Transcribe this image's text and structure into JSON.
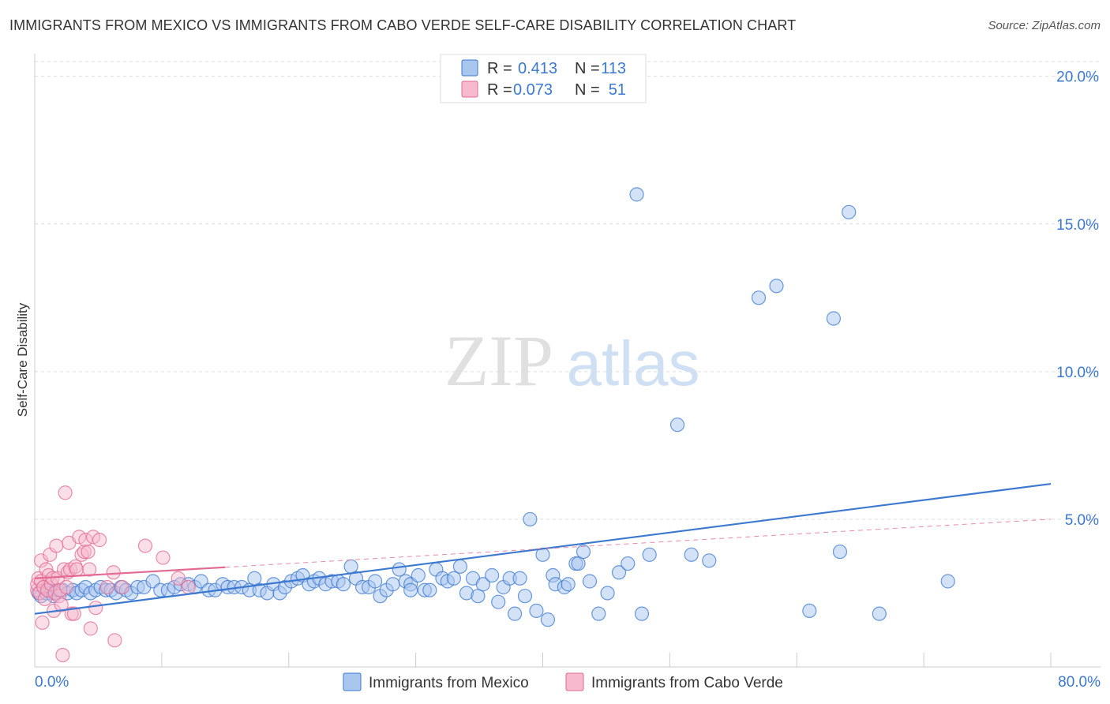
{
  "title": "IMMIGRANTS FROM MEXICO VS IMMIGRANTS FROM CABO VERDE SELF-CARE DISABILITY CORRELATION CHART",
  "source": "Source: ZipAtlas.com",
  "watermark": {
    "zip": "ZIP",
    "atlas": "atlas"
  },
  "colors": {
    "mexico": "#3b78d0",
    "mexico_fill": "#a9c6ef",
    "cabo": "#e36a93",
    "cabo_fill": "#f6b9cd",
    "grid": "#dddddd"
  },
  "stats_box": {
    "rows": [
      {
        "r_label": "R = ",
        "r_value": "0.413",
        "n_label": "N = ",
        "n_value": "113"
      },
      {
        "r_label": "R = ",
        "r_value": "0.073",
        "n_label": "N = ",
        "n_value": "51"
      }
    ]
  },
  "chart_data": {
    "type": "scatter",
    "title": "IMMIGRANTS FROM MEXICO VS IMMIGRANTS FROM CABO VERDE SELF-CARE DISABILITY CORRELATION CHART",
    "xlabel": "",
    "ylabel": "Self-Care Disability",
    "xlim": [
      0,
      80
    ],
    "ylim": [
      0,
      20.5
    ],
    "x_tick_labels": [
      "0.0%",
      "80.0%"
    ],
    "y_ticks": [
      5,
      10,
      15,
      20
    ],
    "y_tick_labels": [
      "5.0%",
      "10.0%",
      "15.0%",
      "20.0%"
    ],
    "legend": [
      "Immigrants from Mexico",
      "Immigrants from Cabo Verde"
    ],
    "series": [
      {
        "name": "Immigrants from Mexico",
        "r": 0.413,
        "n": 113,
        "trend": {
          "x0": 0,
          "y0": 1.8,
          "x1": 80,
          "y1": 6.2
        },
        "points": [
          [
            0.3,
            2.5
          ],
          [
            0.5,
            2.4
          ],
          [
            0.7,
            2.7
          ],
          [
            0.9,
            2.5
          ],
          [
            1.1,
            2.6
          ],
          [
            1.3,
            2.5
          ],
          [
            1.5,
            2.4
          ],
          [
            1.8,
            2.6
          ],
          [
            2.2,
            2.6
          ],
          [
            2.6,
            2.5
          ],
          [
            3.0,
            2.6
          ],
          [
            3.3,
            2.5
          ],
          [
            3.7,
            2.6
          ],
          [
            4.0,
            2.7
          ],
          [
            4.4,
            2.5
          ],
          [
            4.8,
            2.6
          ],
          [
            5.2,
            2.7
          ],
          [
            5.6,
            2.6
          ],
          [
            6.0,
            2.6
          ],
          [
            6.4,
            2.5
          ],
          [
            6.8,
            2.7
          ],
          [
            7.2,
            2.6
          ],
          [
            7.6,
            2.5
          ],
          [
            8.1,
            2.7
          ],
          [
            8.6,
            2.7
          ],
          [
            9.3,
            2.9
          ],
          [
            9.9,
            2.6
          ],
          [
            10.5,
            2.6
          ],
          [
            11.0,
            2.7
          ],
          [
            11.5,
            2.8
          ],
          [
            12.1,
            2.8
          ],
          [
            12.6,
            2.7
          ],
          [
            13.1,
            2.9
          ],
          [
            13.7,
            2.6
          ],
          [
            14.2,
            2.6
          ],
          [
            14.8,
            2.8
          ],
          [
            15.2,
            2.7
          ],
          [
            15.7,
            2.7
          ],
          [
            16.3,
            2.7
          ],
          [
            16.9,
            2.6
          ],
          [
            17.3,
            3.0
          ],
          [
            17.7,
            2.6
          ],
          [
            18.3,
            2.5
          ],
          [
            18.8,
            2.8
          ],
          [
            19.3,
            2.5
          ],
          [
            19.7,
            2.7
          ],
          [
            20.2,
            2.9
          ],
          [
            20.7,
            3.0
          ],
          [
            21.1,
            3.1
          ],
          [
            21.6,
            2.8
          ],
          [
            22.0,
            2.9
          ],
          [
            22.4,
            3.0
          ],
          [
            22.9,
            2.8
          ],
          [
            23.4,
            2.9
          ],
          [
            23.9,
            2.9
          ],
          [
            24.3,
            2.8
          ],
          [
            24.9,
            3.4
          ],
          [
            25.3,
            3.0
          ],
          [
            25.8,
            2.7
          ],
          [
            26.3,
            2.7
          ],
          [
            26.8,
            2.9
          ],
          [
            27.2,
            2.4
          ],
          [
            27.7,
            2.6
          ],
          [
            28.2,
            2.8
          ],
          [
            28.7,
            3.3
          ],
          [
            29.2,
            2.9
          ],
          [
            29.6,
            2.8
          ],
          [
            30.2,
            3.1
          ],
          [
            30.7,
            2.6
          ],
          [
            31.1,
            2.6
          ],
          [
            31.6,
            3.3
          ],
          [
            32.1,
            3.0
          ],
          [
            32.5,
            2.9
          ],
          [
            33.0,
            3.0
          ],
          [
            33.5,
            3.4
          ],
          [
            34.0,
            2.5
          ],
          [
            34.5,
            3.0
          ],
          [
            34.9,
            2.4
          ],
          [
            35.3,
            2.8
          ],
          [
            36.0,
            3.1
          ],
          [
            36.5,
            2.2
          ],
          [
            36.9,
            2.7
          ],
          [
            37.4,
            3.0
          ],
          [
            37.8,
            1.8
          ],
          [
            38.2,
            3.0
          ],
          [
            38.6,
            2.4
          ],
          [
            39.0,
            5.0
          ],
          [
            39.5,
            1.9
          ],
          [
            40.0,
            3.8
          ],
          [
            40.4,
            1.6
          ],
          [
            40.8,
            3.1
          ],
          [
            41.0,
            2.8
          ],
          [
            41.7,
            2.7
          ],
          [
            42.0,
            2.8
          ],
          [
            42.6,
            3.5
          ],
          [
            42.8,
            3.5
          ],
          [
            43.2,
            3.9
          ],
          [
            43.7,
            2.9
          ],
          [
            44.4,
            1.8
          ],
          [
            45.1,
            2.5
          ],
          [
            46.0,
            3.2
          ],
          [
            46.7,
            3.5
          ],
          [
            47.4,
            16.0
          ],
          [
            47.8,
            1.8
          ],
          [
            48.4,
            3.8
          ],
          [
            50.6,
            8.2
          ],
          [
            51.7,
            3.8
          ],
          [
            53.1,
            3.6
          ],
          [
            57.0,
            12.5
          ],
          [
            58.4,
            12.9
          ],
          [
            61.0,
            1.9
          ],
          [
            62.9,
            11.8
          ],
          [
            63.4,
            3.9
          ],
          [
            64.1,
            15.4
          ],
          [
            66.5,
            1.8
          ],
          [
            71.9,
            2.9
          ],
          [
            29.6,
            2.6
          ]
        ]
      },
      {
        "name": "Immigrants from Cabo Verde",
        "r": 0.073,
        "n": 51,
        "trend": {
          "x0": 0,
          "y0": 3.0,
          "x1": 80,
          "y1": 5.0
        },
        "solid_until_x": 15,
        "points": [
          [
            0.2,
            2.6
          ],
          [
            0.2,
            2.8
          ],
          [
            0.3,
            3.0
          ],
          [
            0.4,
            2.5
          ],
          [
            0.5,
            3.6
          ],
          [
            0.5,
            2.9
          ],
          [
            0.6,
            1.5
          ],
          [
            0.7,
            2.7
          ],
          [
            0.8,
            2.3
          ],
          [
            0.9,
            3.3
          ],
          [
            1.0,
            2.6
          ],
          [
            1.1,
            3.1
          ],
          [
            1.2,
            3.8
          ],
          [
            1.3,
            2.8
          ],
          [
            1.4,
            3.0
          ],
          [
            1.5,
            1.9
          ],
          [
            1.6,
            2.5
          ],
          [
            1.7,
            4.1
          ],
          [
            1.8,
            3.0
          ],
          [
            1.9,
            2.4
          ],
          [
            2.0,
            2.6
          ],
          [
            2.1,
            2.1
          ],
          [
            2.2,
            0.4
          ],
          [
            2.3,
            3.3
          ],
          [
            2.4,
            5.9
          ],
          [
            2.5,
            2.7
          ],
          [
            2.6,
            3.2
          ],
          [
            2.7,
            4.2
          ],
          [
            2.8,
            3.3
          ],
          [
            2.9,
            1.8
          ],
          [
            3.1,
            1.8
          ],
          [
            3.2,
            3.4
          ],
          [
            3.3,
            3.3
          ],
          [
            3.5,
            4.4
          ],
          [
            3.7,
            3.8
          ],
          [
            3.9,
            3.9
          ],
          [
            4.0,
            4.3
          ],
          [
            4.2,
            3.9
          ],
          [
            4.3,
            3.3
          ],
          [
            4.4,
            1.3
          ],
          [
            4.6,
            4.4
          ],
          [
            4.8,
            2.0
          ],
          [
            5.1,
            4.3
          ],
          [
            5.7,
            2.7
          ],
          [
            6.2,
            3.2
          ],
          [
            6.3,
            0.9
          ],
          [
            6.9,
            2.7
          ],
          [
            8.7,
            4.1
          ],
          [
            10.1,
            3.7
          ],
          [
            11.3,
            3.0
          ],
          [
            12.1,
            2.7
          ]
        ]
      }
    ]
  }
}
